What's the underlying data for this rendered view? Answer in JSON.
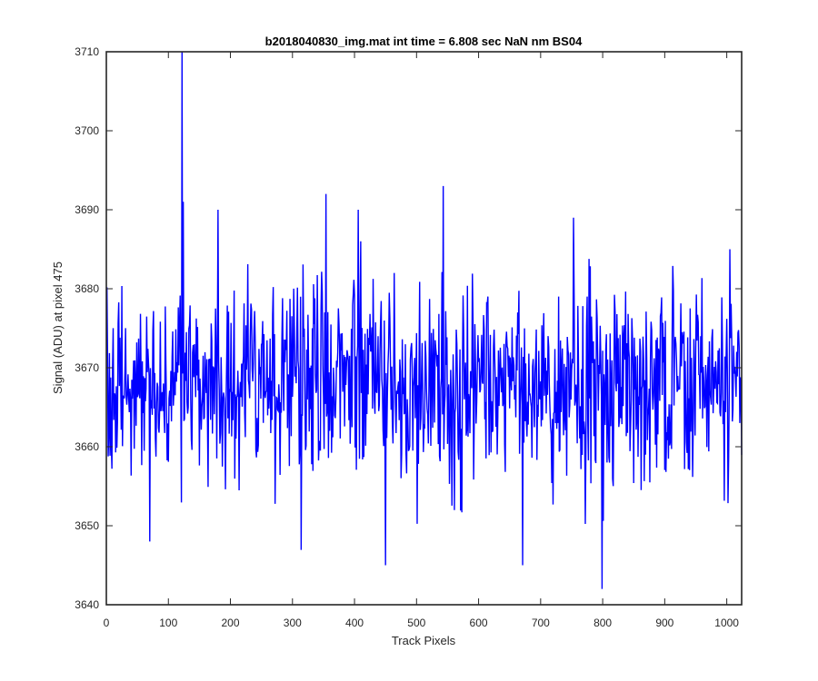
{
  "chart_data": {
    "type": "line",
    "title": "b2018040830_img.mat int time = 6.808 sec  NaN nm BS04",
    "xlabel": "Track Pixels",
    "ylabel": "Signal (ADU) at pixel 475",
    "xlim": [
      0,
      1024
    ],
    "ylim": [
      3640,
      3710
    ],
    "xticks": [
      0,
      100,
      200,
      300,
      400,
      500,
      600,
      700,
      800,
      900,
      1000
    ],
    "yticks": [
      3640,
      3650,
      3660,
      3670,
      3680,
      3690,
      3700,
      3710
    ],
    "xtick_labels": [
      "0",
      "100",
      "200",
      "300",
      "400",
      "500",
      "600",
      "700",
      "800",
      "900",
      "1000"
    ],
    "ytick_labels": [
      "3640",
      "3650",
      "3660",
      "3670",
      "3680",
      "3690",
      "3700",
      "3710"
    ],
    "grid": false,
    "box": true,
    "series": [
      {
        "color": "#0000ff",
        "x_start": 1,
        "x_step": 1,
        "mean": 3668,
        "noise_sd": 6,
        "seed": 475,
        "y_min_observed": 3642,
        "y_max_observed": 3710,
        "notable_points": [
          {
            "x": 122,
            "y": 3710
          },
          {
            "x": 124,
            "y": 3691
          },
          {
            "x": 70,
            "y": 3648
          },
          {
            "x": 180,
            "y": 3690
          },
          {
            "x": 354,
            "y": 3692
          },
          {
            "x": 406,
            "y": 3690
          },
          {
            "x": 450,
            "y": 3645
          },
          {
            "x": 543,
            "y": 3693
          },
          {
            "x": 671,
            "y": 3645
          },
          {
            "x": 753,
            "y": 3689
          },
          {
            "x": 799,
            "y": 3642
          },
          {
            "x": 1005,
            "y": 3685
          },
          {
            "x": 1023,
            "y": 3667
          }
        ]
      }
    ]
  }
}
